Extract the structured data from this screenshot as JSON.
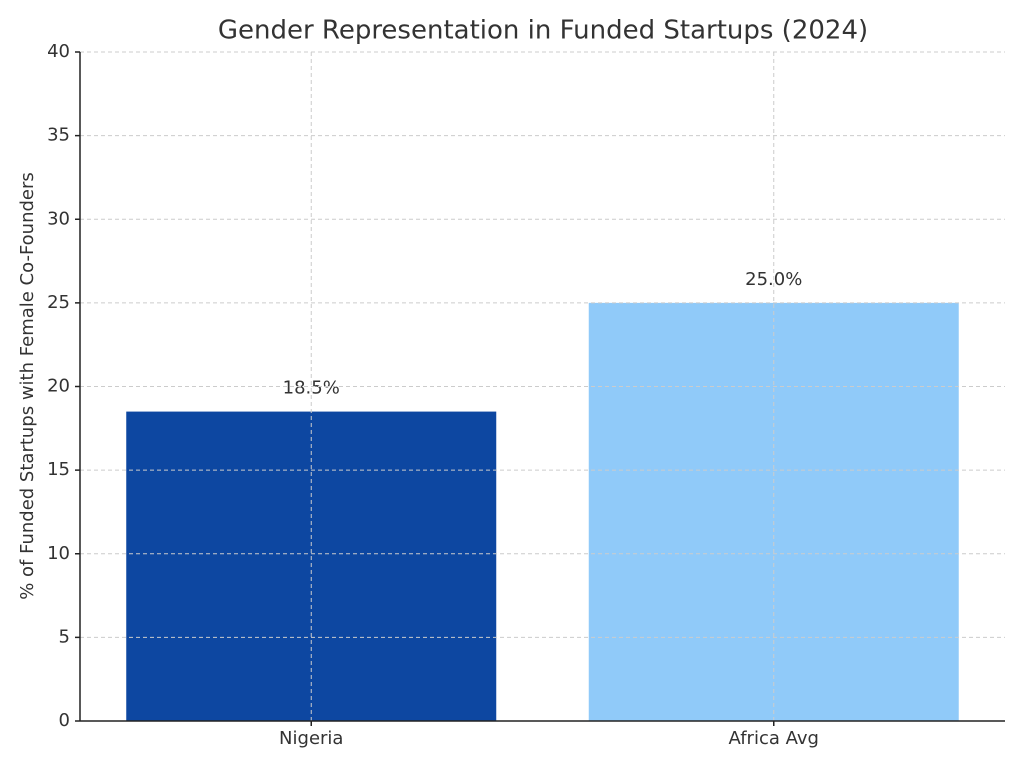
{
  "chart_data": {
    "type": "bar",
    "title": "Gender Representation in Funded Startups (2024)",
    "y_label": "% of Funded Startups with Female Co-Founders",
    "categories": [
      "Nigeria",
      "Africa Avg"
    ],
    "values": [
      18.5,
      25.0
    ],
    "value_labels": [
      "18.5%",
      "25.0%"
    ],
    "colors": [
      "#0d47a1",
      "#90caf9"
    ],
    "ylim": [
      0,
      40
    ],
    "yticks": [
      0,
      5,
      10,
      15,
      20,
      25,
      30,
      35,
      40
    ],
    "grid": true
  }
}
